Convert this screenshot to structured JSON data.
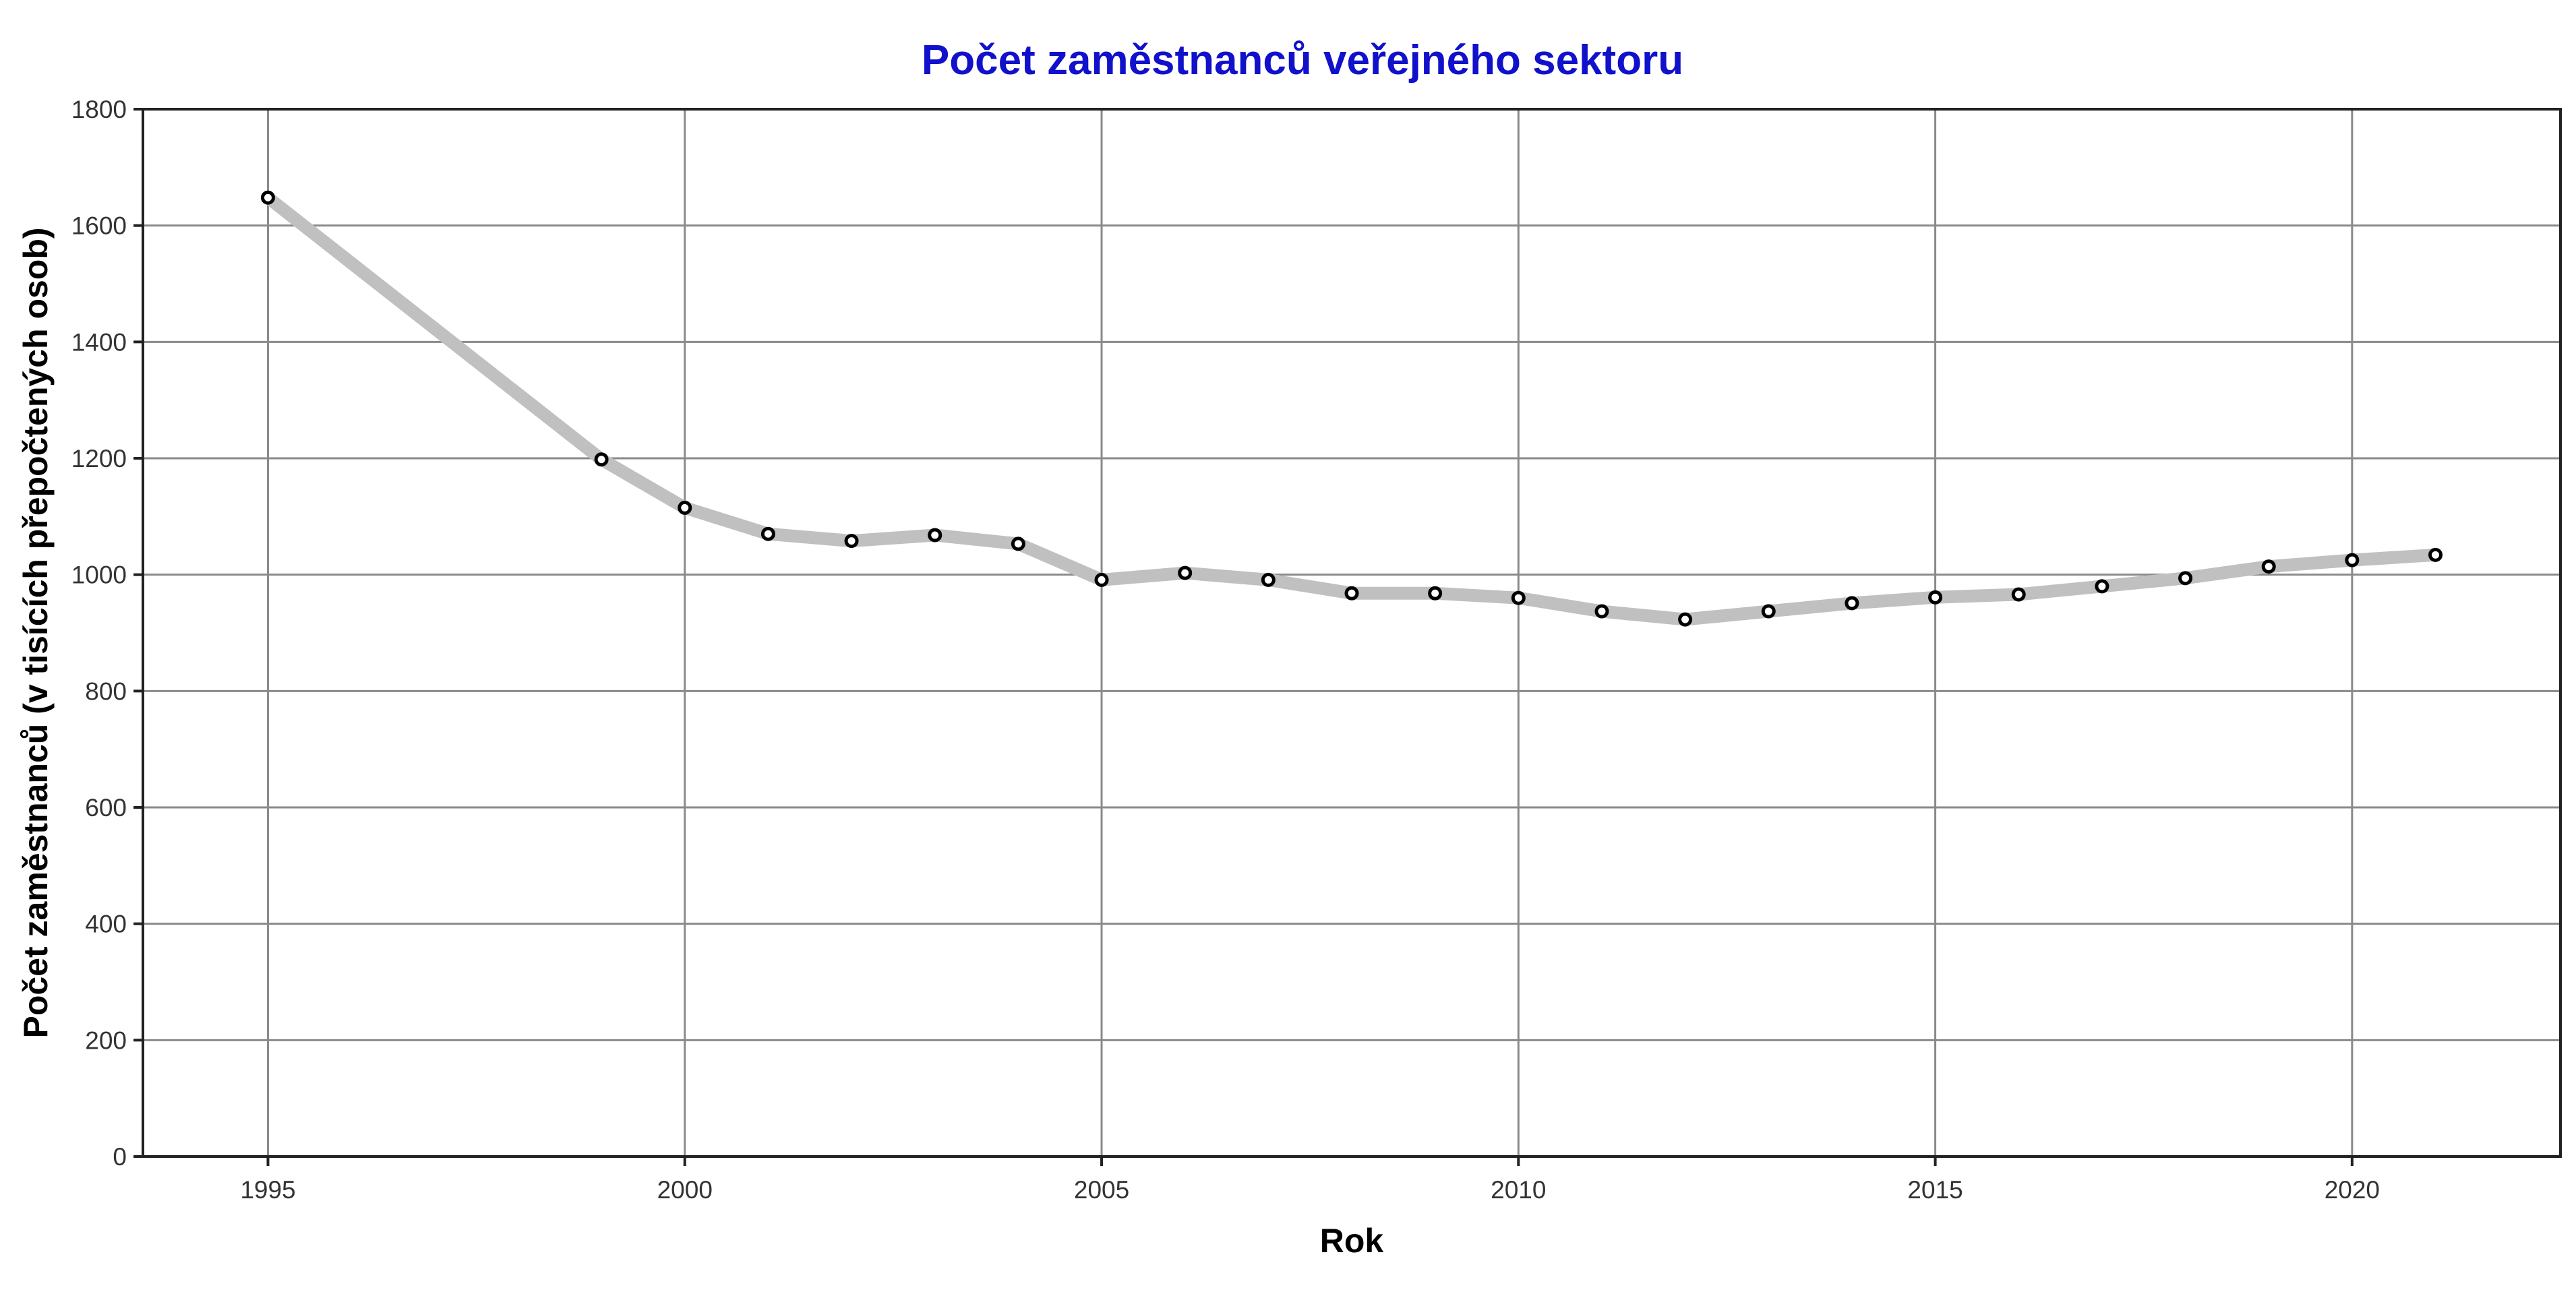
{
  "chart_data": {
    "type": "line",
    "title": "Počet zaměstnanců veřejného sektoru",
    "xlabel": "Rok",
    "ylabel": "Počet zaměstnanců (v tisících přepočtených osob)",
    "xlim": [
      1993.5,
      2022.5
    ],
    "ylim": [
      0,
      1800
    ],
    "x_ticks": [
      1995,
      2000,
      2005,
      2010,
      2015,
      2020
    ],
    "y_ticks": [
      0,
      200,
      400,
      600,
      800,
      1000,
      1200,
      1400,
      1600,
      1800
    ],
    "grid": true,
    "line_color": "#c0c0c0",
    "marker_color": "#000000",
    "title_color": "#1111cc",
    "series": [
      {
        "x": [
          1995,
          1999,
          2000,
          2001,
          2002,
          2003,
          2004,
          2005,
          2006,
          2007,
          2008,
          2009,
          2010,
          2011,
          2012,
          2013,
          2014,
          2015,
          2016,
          2017,
          2018,
          2019,
          2020,
          2021
        ],
        "y": [
          1648,
          1198,
          1115,
          1070,
          1058,
          1068,
          1053,
          991,
          1003,
          991,
          968,
          968,
          960,
          937,
          923,
          937,
          951,
          961,
          966,
          980,
          994,
          1014,
          1025,
          1034
        ]
      }
    ]
  }
}
